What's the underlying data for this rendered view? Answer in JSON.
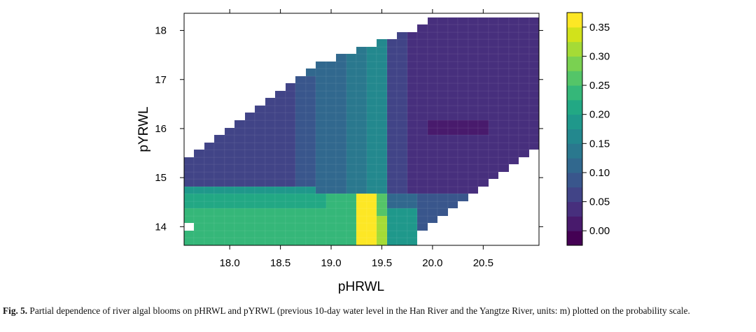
{
  "chart_data": {
    "type": "heatmap",
    "xlabel": "pHRWL",
    "ylabel": "pYRWL",
    "xlim": [
      17.55,
      21.05
    ],
    "ylim": [
      13.62,
      18.35
    ],
    "x_ticks": [
      "18.0",
      "18.5",
      "19.0",
      "19.5",
      "20.0",
      "20.5"
    ],
    "y_ticks": [
      "14",
      "15",
      "16",
      "17",
      "18"
    ],
    "grid": {
      "x_start": 17.55,
      "y_start": 13.62,
      "dx": 0.1,
      "dy": 0.15,
      "nx": 35,
      "ny": 31
    },
    "valid_x_range_by_row": [
      [
        17.55,
        19.85
      ],
      [
        17.55,
        19.85
      ],
      [
        17.65,
        19.95
      ],
      [
        17.55,
        20.05
      ],
      [
        17.55,
        20.15
      ],
      [
        17.55,
        20.25
      ],
      [
        17.55,
        20.35
      ],
      [
        17.55,
        20.45
      ],
      [
        17.55,
        20.55
      ],
      [
        17.55,
        20.65
      ],
      [
        17.55,
        20.75
      ],
      [
        17.55,
        20.85
      ],
      [
        17.65,
        20.95
      ],
      [
        17.75,
        21.05
      ],
      [
        17.85,
        21.05
      ],
      [
        17.95,
        21.05
      ],
      [
        18.05,
        21.05
      ],
      [
        18.15,
        21.05
      ],
      [
        18.25,
        21.05
      ],
      [
        18.35,
        21.05
      ],
      [
        18.45,
        21.05
      ],
      [
        18.55,
        21.05
      ],
      [
        18.65,
        21.05
      ],
      [
        18.75,
        21.05
      ],
      [
        18.85,
        21.05
      ],
      [
        19.05,
        21.05
      ],
      [
        19.25,
        21.05
      ],
      [
        19.45,
        21.05
      ],
      [
        19.65,
        21.05
      ],
      [
        19.85,
        21.05
      ],
      [
        19.95,
        21.05
      ]
    ],
    "value_summary": {
      "low_y_band_y_below_14.65": 0.22,
      "peak_x_19.35_19.45_low_y": 0.35,
      "mid_band_x_19.4_19.55": 0.17,
      "left_plateau": 0.07,
      "right_region": 0.04,
      "minimum_region_x_20.0_20.6_y_15.8_16.2": 0.0
    },
    "colorbar": {
      "ticks": [
        "0.00",
        "0.05",
        "0.10",
        "0.15",
        "0.20",
        "0.25",
        "0.30",
        "0.35"
      ],
      "levels": [
        "#440154",
        "#481a6c",
        "#472f7d",
        "#414487",
        "#39568c",
        "#31688e",
        "#2a788e",
        "#23888e",
        "#1f988b",
        "#22a884",
        "#35b779",
        "#54c568",
        "#7ad151",
        "#a5db36",
        "#d2e21b",
        "#fde725"
      ],
      "min": -0.025,
      "max": 0.375
    }
  },
  "caption": {
    "label": "Fig. 5.",
    "text": "Partial dependence of river algal blooms on pHRWL and pYRWL (previous 10-day water level in the Han River and the Yangtze River, units: m) plotted on the probability scale."
  }
}
